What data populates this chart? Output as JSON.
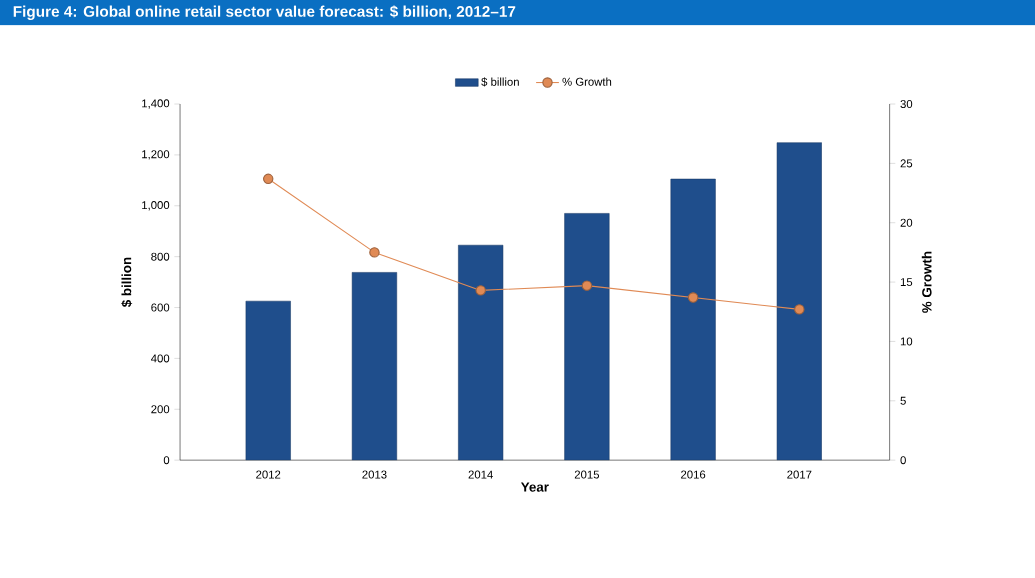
{
  "chart_data": {
    "type": "bar",
    "title": "Figure 4: Global online retail sector value forecast: $ billion, 2012–17",
    "categories": [
      "2012",
      "2013",
      "2014",
      "2015",
      "2016",
      "2017"
    ],
    "series": [
      {
        "name": "$ billion",
        "color": "#1f4e8c",
        "values": [
          625,
          738,
          845,
          970,
          1105,
          1248
        ]
      },
      {
        "name": "% Growth",
        "type": "line",
        "axis": "y2",
        "color": "#e08a55",
        "values": [
          23.7,
          17.5,
          14.3,
          14.7,
          13.7,
          12.7
        ]
      }
    ],
    "xlabel": "Year",
    "ylabel": "$ billion",
    "y2label": "% Growth",
    "ylim": [
      0,
      1400
    ],
    "yticks": [
      0,
      200,
      400,
      600,
      800,
      {
        "value": 1000,
        "label": "1,000"
      },
      {
        "value": 1200,
        "label": "1,200"
      },
      {
        "value": 1400,
        "label": "1,400"
      }
    ],
    "y2lim": [
      0,
      30
    ],
    "y2ticks": [
      0,
      5,
      10,
      15,
      20,
      25,
      30
    ],
    "legend": "top",
    "marker": "circle",
    "grid": false
  }
}
